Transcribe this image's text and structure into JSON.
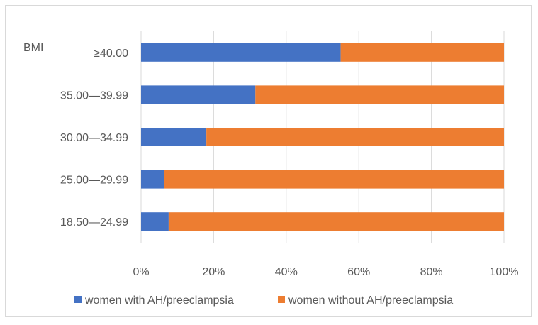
{
  "chart_data": {
    "type": "bar",
    "orientation": "horizontal",
    "stacked": "percent",
    "ylabel": "BMI",
    "categories": [
      "≥40.00",
      "35.00—39.99",
      "30.00—34.99",
      "25.00—29.99",
      "18.50—24.99"
    ],
    "series": [
      {
        "name": "women with AH/preeclampsia",
        "values": [
          55,
          31.5,
          18,
          6.3,
          7.6
        ],
        "color": "#4472C4"
      },
      {
        "name": "women without AH/preeclampsia",
        "values": [
          45,
          68.5,
          82,
          93.7,
          92.4
        ],
        "color": "#ED7D31"
      }
    ],
    "x_ticks": [
      "0%",
      "20%",
      "40%",
      "60%",
      "80%",
      "100%"
    ],
    "xlim": [
      0,
      100
    ],
    "grid": true,
    "legend_position": "bottom"
  }
}
